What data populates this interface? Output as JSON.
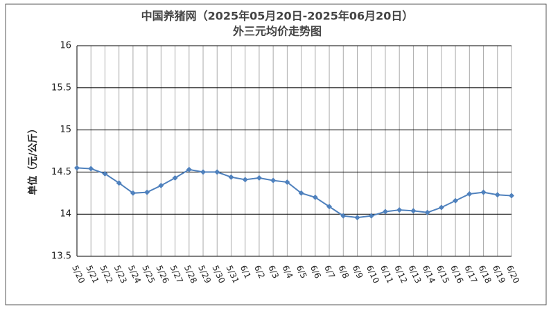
{
  "chart_data": {
    "type": "line",
    "title": "中国养猪网（2025年05月20日-2025年06月20日）",
    "subtitle": "外三元均价走势图",
    "y_label": "单位（元/公斤）",
    "categories": [
      "5/20",
      "5/21",
      "5/22",
      "5/23",
      "5/24",
      "5/25",
      "5/26",
      "5/27",
      "5/28",
      "5/29",
      "5/30",
      "5/31",
      "6/1",
      "6/2",
      "6/3",
      "6/4",
      "6/5",
      "6/6",
      "6/7",
      "6/8",
      "6/9",
      "6/10",
      "6/11",
      "6/12",
      "6/13",
      "6/14",
      "6/15",
      "6/16",
      "6/17",
      "6/18",
      "6/19",
      "6/20"
    ],
    "values": [
      14.55,
      14.54,
      14.48,
      14.37,
      14.25,
      14.26,
      14.34,
      14.43,
      14.53,
      14.5,
      14.5,
      14.44,
      14.41,
      14.43,
      14.4,
      14.38,
      14.25,
      14.2,
      14.09,
      13.98,
      13.96,
      13.98,
      14.03,
      14.05,
      14.04,
      14.02,
      14.08,
      14.16,
      14.24,
      14.26,
      14.23,
      14.22
    ],
    "color": "#4f81bd",
    "ylim": [
      13.5,
      16
    ],
    "yticks": [
      13.5,
      14,
      14.5,
      15,
      15.5,
      16
    ],
    "grid": true
  }
}
